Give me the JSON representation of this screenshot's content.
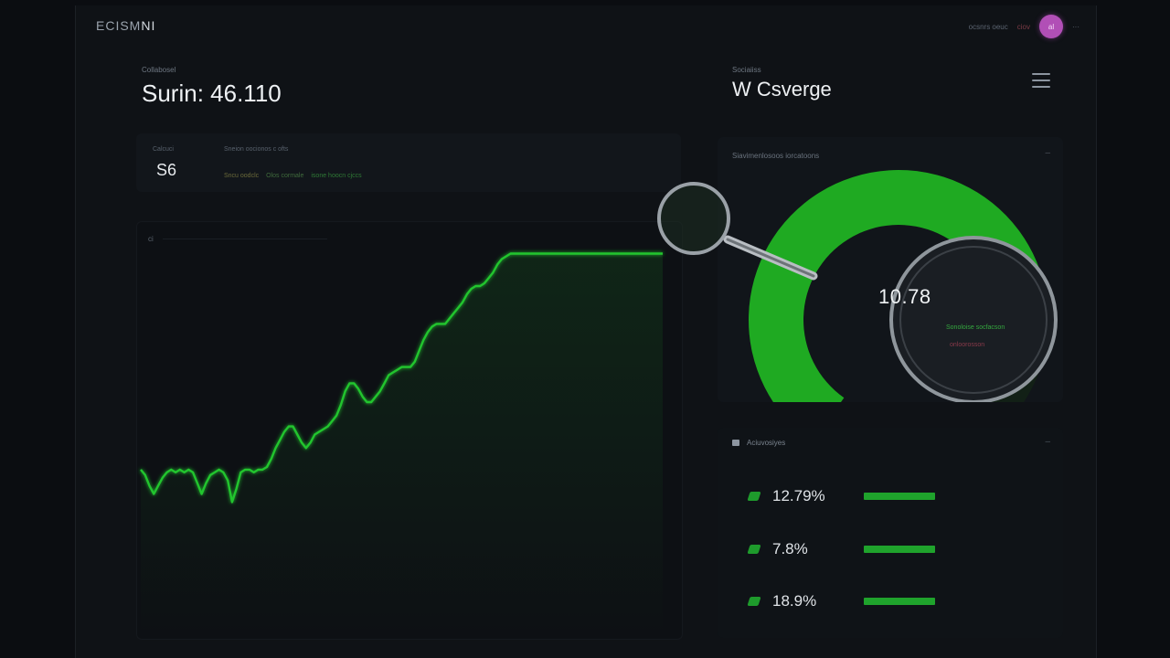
{
  "brand": {
    "dim": "ECISM",
    "bright": "NI"
  },
  "topbar": {
    "links": [
      "ocsnrs oeuc",
      "ciov"
    ],
    "avatar_initials": "al"
  },
  "header": {
    "caption": "Collabosel",
    "title": "Surin: 46.110"
  },
  "right_header": {
    "caption": "Sociaiiss",
    "title": "W Csverge"
  },
  "stat_card": {
    "label": "Calcuci",
    "value": "S6",
    "description": "Sneion oocionos c ofts",
    "legend": [
      "Sncu oodclc",
      "Olos cormale",
      "isone hoocn cjccs"
    ]
  },
  "chart": {
    "tag": "ci",
    "line_color": "#22c52f"
  },
  "chart_data": {
    "type": "line",
    "title": "",
    "xlabel": "",
    "ylabel": "",
    "x": [
      0,
      1,
      2,
      3,
      4,
      5,
      6,
      7,
      8,
      9,
      10,
      11,
      12,
      13,
      14,
      15,
      16,
      17,
      18,
      19,
      20,
      21,
      22,
      23,
      24,
      25,
      26,
      27,
      28,
      29,
      30,
      31,
      32,
      33,
      34,
      35,
      36,
      37,
      38,
      39,
      40,
      41,
      42,
      43,
      44,
      45,
      46,
      47,
      48,
      49,
      50,
      51,
      52,
      53,
      54,
      55,
      56,
      57,
      58,
      59,
      60,
      61,
      62,
      63,
      64,
      65,
      66,
      67,
      68,
      69,
      70,
      71,
      72,
      73,
      74,
      75,
      76,
      77,
      78,
      79,
      80,
      81,
      82,
      83,
      84,
      85,
      86,
      87,
      88,
      89,
      90,
      91,
      92,
      93,
      94,
      95,
      96,
      97,
      98,
      99,
      100,
      101,
      102,
      103,
      104,
      105,
      106,
      107,
      108,
      109,
      110,
      111,
      112,
      113,
      114,
      115,
      116,
      117,
      118,
      119,
      120
    ],
    "series": [
      {
        "values": [
          10,
          8,
          4,
          1,
          4,
          7,
          9,
          10,
          9,
          10,
          9,
          10,
          9,
          5,
          1,
          5,
          8,
          9,
          10,
          9,
          6,
          -2,
          3,
          9,
          10,
          10,
          9,
          10,
          10,
          11,
          14,
          18,
          21,
          24,
          26,
          26,
          23,
          20,
          18,
          20,
          23,
          24,
          25,
          26,
          28,
          30,
          34,
          39,
          42,
          42,
          40,
          37,
          35,
          35,
          37,
          39,
          42,
          45,
          46,
          47,
          48,
          48,
          48,
          50,
          54,
          58,
          61,
          63,
          64,
          64,
          64,
          66,
          68,
          70,
          72,
          75,
          77,
          78,
          78,
          79,
          81,
          83,
          86,
          88,
          89,
          90,
          90,
          90,
          90,
          90,
          90,
          90,
          90,
          90,
          90,
          90,
          90,
          90,
          90,
          90,
          90,
          90,
          90,
          90,
          90,
          90,
          90,
          90,
          90,
          90,
          90,
          90,
          90,
          90,
          90,
          90,
          90,
          90,
          90,
          90,
          90
        ]
      }
    ],
    "ylim": [
      -10,
      100
    ],
    "grid": false
  },
  "gauge": {
    "title": "Siavimenlosoos iorcatoons",
    "value_label": "10.78",
    "fraction": 0.78,
    "lines": [
      "Sonoloise socfacson",
      "onloorosson"
    ],
    "arc_color": "#1faa22"
  },
  "breakdown": {
    "title": "Aciuvosiyes",
    "rows": [
      {
        "value": "12.79%",
        "fill": 1.0
      },
      {
        "value": "7.8%",
        "fill": 1.0
      },
      {
        "value": "18.9%",
        "fill": 1.0
      }
    ]
  }
}
